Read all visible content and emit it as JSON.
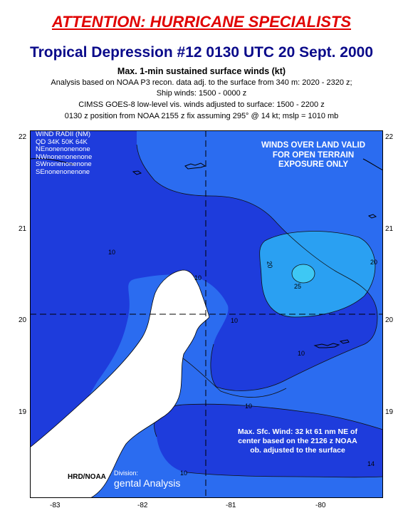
{
  "header": {
    "attention": "ATTENTION: HURRICANE SPECIALISTS",
    "title": "Tropical Depression #12 0130 UTC 20 Sept. 2000",
    "subtitle": "Max. 1-min sustained surface winds (kt)",
    "lines": [
      "Analysis based on NOAA P3 recon. data adj. to the surface from 340 m:  2020 - 2320 z;",
      "Ship winds:  1500 - 0000 z",
      "CIMSS GOES-8 low-level vis. winds adjusted to surface:  1500 - 2200 z",
      "0130 z position from NOAA 2155 z fix assuming 295° @  14 kt; mslp = 1010 mb"
    ]
  },
  "map": {
    "lat_labels": [
      "22",
      "21",
      "20",
      "19"
    ],
    "lon_labels": [
      "-83",
      "-82",
      "-81",
      "-80"
    ],
    "wind_radii": {
      "title": "WIND RADII (NM)",
      "header": "QD 34K 50K 64K",
      "rows": [
        "NEnonenonenone",
        "NWnonenonenone",
        "SWnonenonenone",
        "SEnonenonenone"
      ]
    },
    "land_note": [
      "WINDS OVER LAND VALID",
      "FOR OPEN TERRAIN",
      "EXPOSURE ONLY"
    ],
    "max_wind_note": [
      "Max. Sfc. Wind: 32 kt 61 nm NE of",
      "center based on the 2126 z NOAA",
      "ob. adjusted to the surface"
    ],
    "contour_labels": [
      "10",
      "10",
      "10",
      "10",
      "10",
      "20",
      "20",
      "25",
      "10",
      "14"
    ],
    "credit": "HRD/NOAA",
    "division_label": "Division:",
    "division_text": "gental Analysis",
    "colors": {
      "lt10": "#1e3cdc",
      "band10_20": "#2b6cf0",
      "band20_25": "#2aa0f2",
      "gt25": "#3ec8f4",
      "land_fill": "#ffffff",
      "coast": "#000000"
    }
  }
}
